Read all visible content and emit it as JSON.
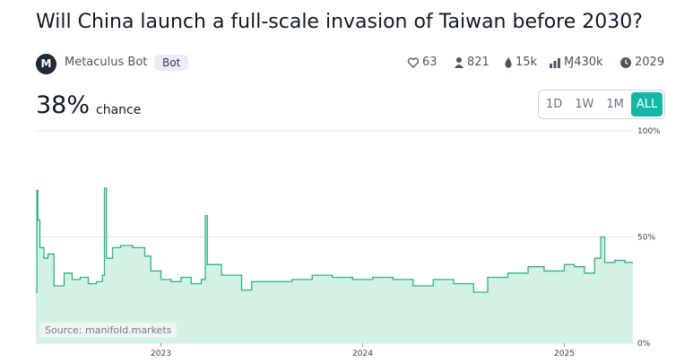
{
  "header": {
    "title": "Will China launch a full-scale invasion of Taiwan before 2030?",
    "author": "Metaculus Bot",
    "badge": "Bot",
    "stats": {
      "likes": "63",
      "traders": "821",
      "liquidity": "15k",
      "volume": "Ɱ430k",
      "close": "2029"
    }
  },
  "probability": {
    "value": "38%",
    "label": "chance"
  },
  "ranges": [
    "1D",
    "1W",
    "1M",
    "ALL"
  ],
  "source": "Source: manifold.markets",
  "chart_data": {
    "type": "area",
    "color": "#2fb57f",
    "fill": "#d3f2e3",
    "x": [
      2022.38,
      2022.385,
      2022.39,
      2022.4,
      2022.42,
      2022.44,
      2022.47,
      2022.52,
      2022.56,
      2022.6,
      2022.64,
      2022.68,
      2022.71,
      2022.72,
      2022.73,
      2022.76,
      2022.8,
      2022.86,
      2022.92,
      2022.95,
      2023.0,
      2023.05,
      2023.1,
      2023.15,
      2023.2,
      2023.22,
      2023.23,
      2023.3,
      2023.4,
      2023.45,
      2023.55,
      2023.65,
      2023.75,
      2023.85,
      2023.95,
      2024.05,
      2024.15,
      2024.25,
      2024.35,
      2024.45,
      2024.55,
      2024.62,
      2024.72,
      2024.82,
      2024.9,
      2025.0,
      2025.05,
      2025.1,
      2025.15,
      2025.18,
      2025.2,
      2025.25,
      2025.3,
      2025.33
    ],
    "values": [
      24,
      72,
      58,
      45,
      40,
      42,
      27,
      33,
      30,
      31,
      28,
      29,
      32,
      73,
      40,
      45,
      46,
      45,
      41,
      34,
      30,
      29,
      31,
      28,
      30,
      60,
      37,
      32,
      25,
      29,
      29,
      30,
      32,
      31,
      30,
      31,
      30,
      27,
      30,
      28,
      24,
      31,
      33,
      36,
      34,
      37,
      36,
      33,
      40,
      50,
      38,
      39,
      38,
      38
    ],
    "xlim": [
      2022.38,
      2025.34
    ],
    "xticks": [
      2023,
      2024,
      2025
    ],
    "ylim": [
      0,
      100
    ],
    "yticks": [
      {
        "value": 0,
        "label": "0%"
      },
      {
        "value": 50,
        "label": "50%"
      },
      {
        "value": 100,
        "label": "100%"
      }
    ]
  }
}
